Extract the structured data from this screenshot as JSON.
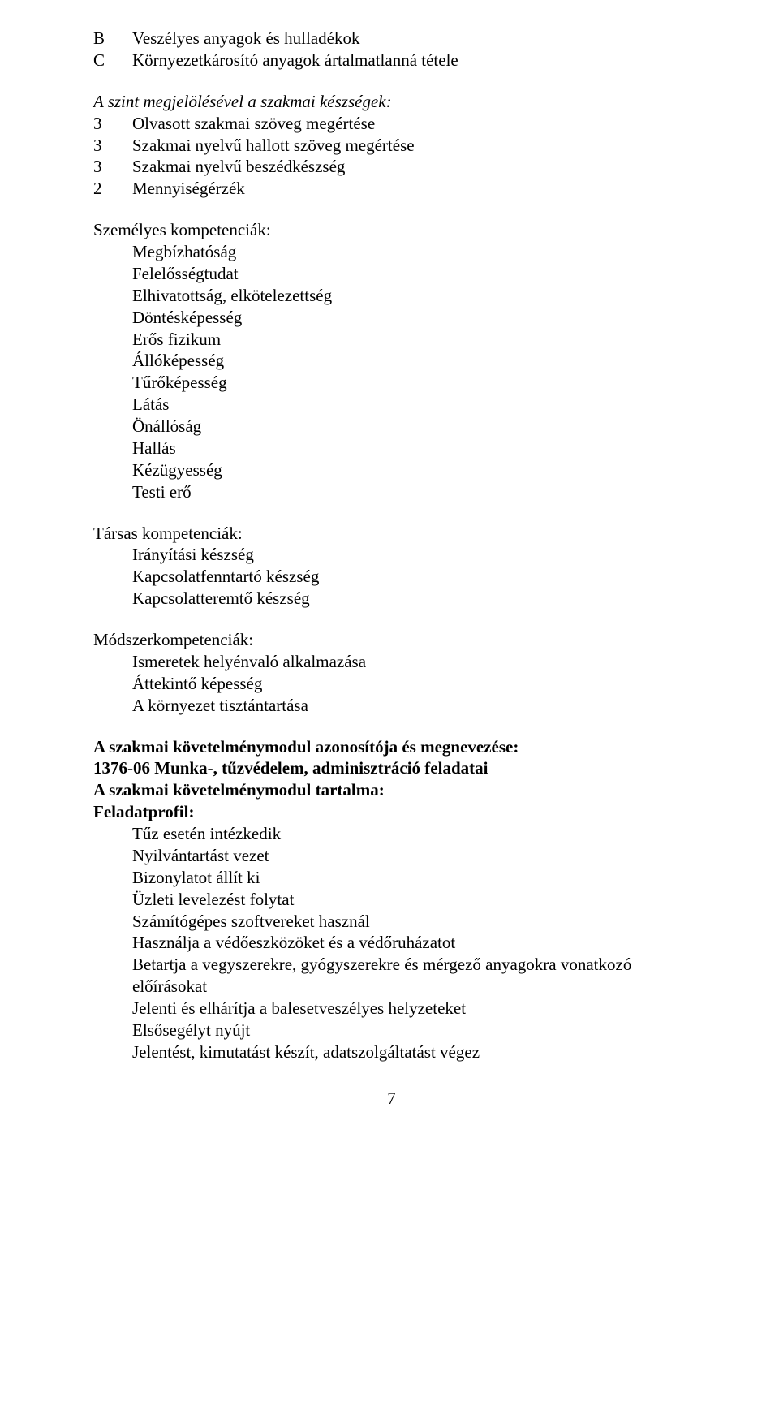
{
  "page_number": "7",
  "letter_rows": [
    {
      "letter": "B",
      "text": "Veszélyes anyagok és hulladékok"
    },
    {
      "letter": "C",
      "text": "Környezetkárosító anyagok ártalmatlanná tétele"
    }
  ],
  "italic_intro": "A szint megjelölésével a szakmai készségek:",
  "numbered_rows": [
    {
      "num": "3",
      "text": "Olvasott szakmai szöveg megértése"
    },
    {
      "num": "3",
      "text": "Szakmai nyelvű hallott szöveg megértése"
    },
    {
      "num": "3",
      "text": "Szakmai nyelvű beszédkészség"
    },
    {
      "num": "2",
      "text": "Mennyiségérzék"
    }
  ],
  "sections": [
    {
      "heading": "Személyes kompetenciák:",
      "items": [
        "Megbízhatóság",
        "Felelősségtudat",
        "Elhivatottság, elkötelezettség",
        "Döntésképesség",
        "Erős fizikum",
        "Állóképesség",
        "Tűrőképesség",
        "Látás",
        "Önállóság",
        "Hallás",
        "Kézügyesség",
        "Testi erő"
      ]
    },
    {
      "heading": "Társas kompetenciák:",
      "items": [
        "Irányítási készség",
        "Kapcsolatfenntartó készség",
        "Kapcsolatteremtő készség"
      ]
    },
    {
      "heading": "Módszerkompetenciák:",
      "items": [
        "Ismeretek helyénvaló alkalmazása",
        "Áttekintő képesség",
        "A környezet tisztántartása"
      ]
    }
  ],
  "bold_block": [
    "A szakmai követelménymodul azonosítója és megnevezése:",
    "1376-06  Munka-, tűzvédelem, adminisztráció feladatai",
    "A szakmai követelménymodul tartalma:",
    "Feladatprofil:"
  ],
  "feladat_items": [
    "Tűz esetén intézkedik",
    "Nyilvántartást vezet",
    "Bizonylatot állít ki",
    "Üzleti levelezést folytat",
    "Számítógépes szoftvereket használ",
    "Használja a védőeszközöket és a védőruházatot",
    "Betartja a vegyszerekre, gyógyszerekre és mérgező anyagokra vonatkozó előírásokat",
    "Jelenti és elhárítja a balesetveszélyes helyzeteket",
    "Elsősegélyt nyújt",
    "Jelentést, kimutatást készít, adatszolgáltatást végez"
  ]
}
